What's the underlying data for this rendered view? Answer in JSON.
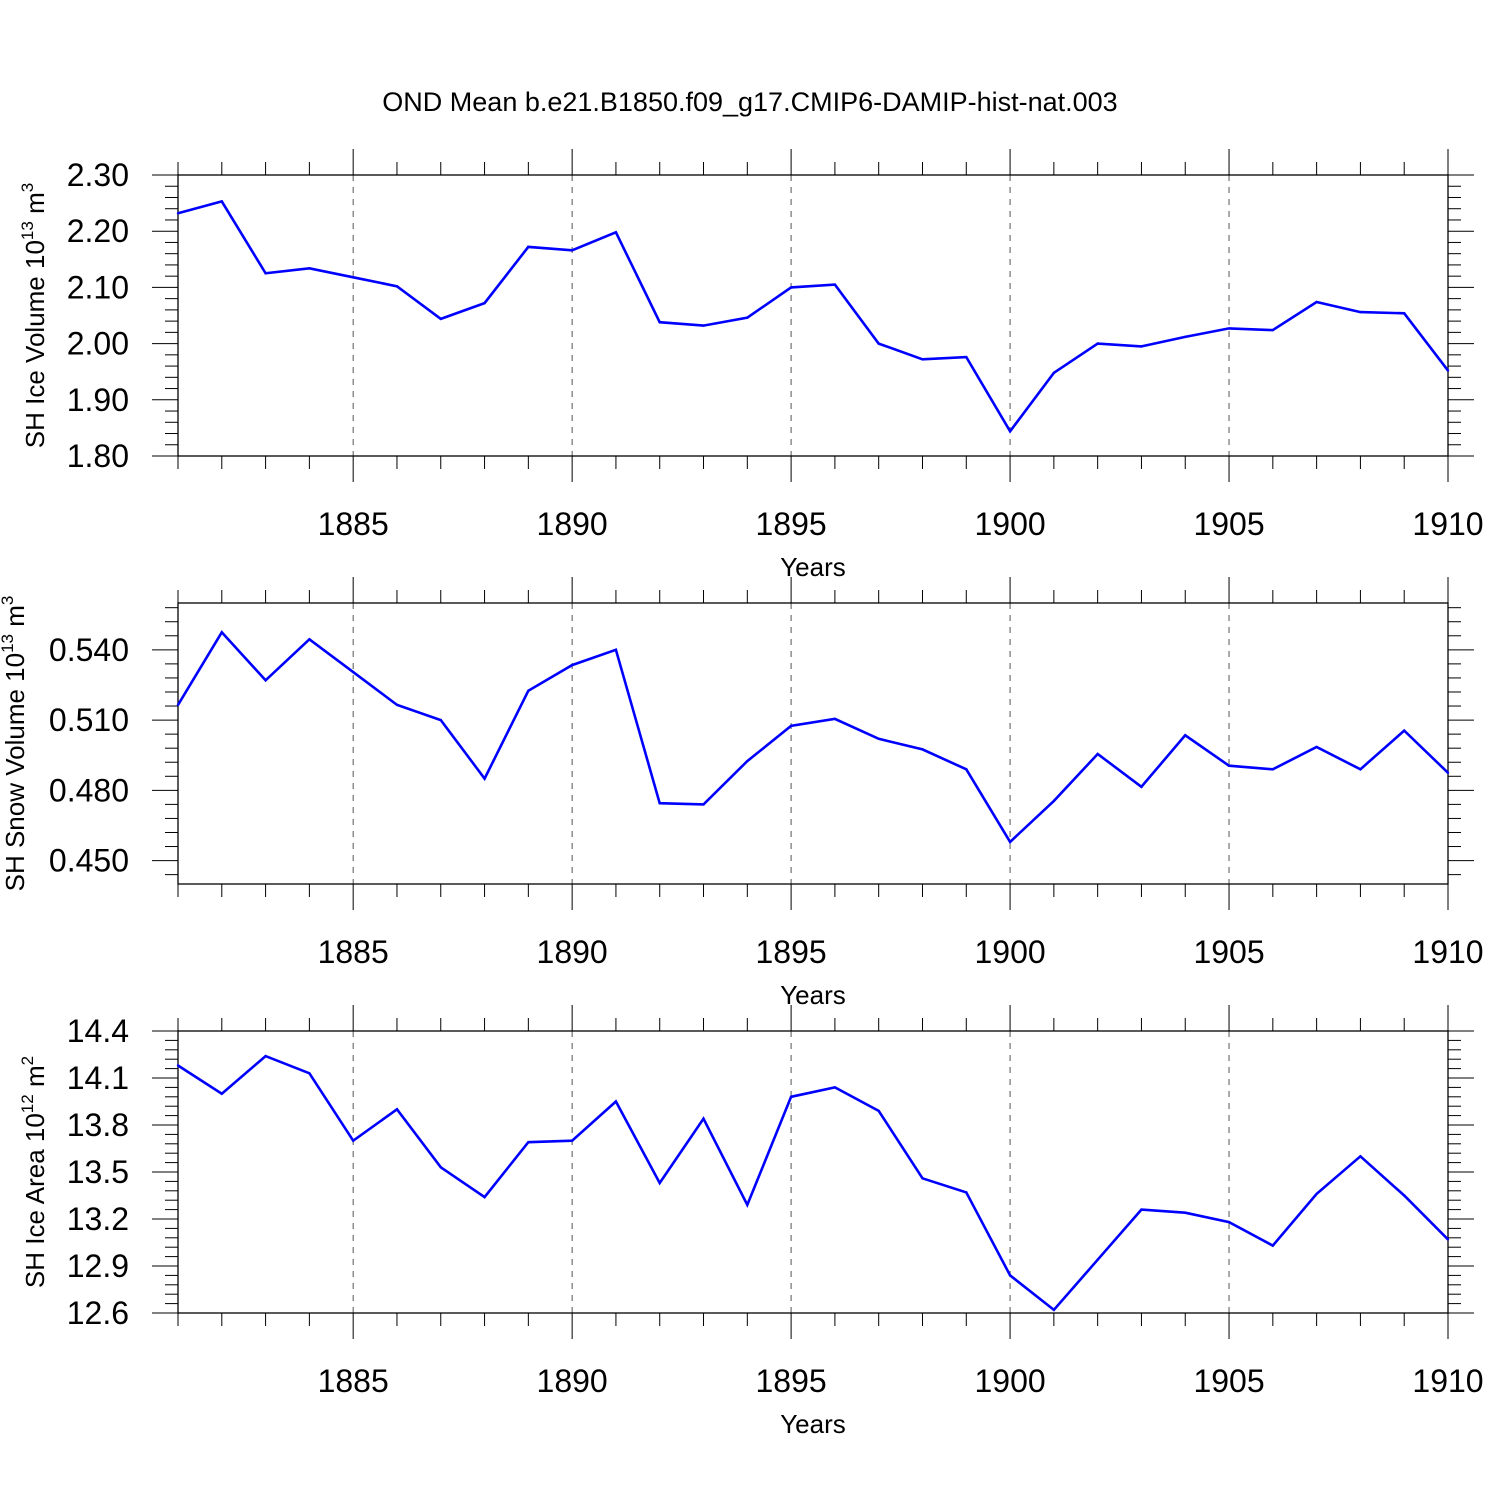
{
  "figure_title": "OND Mean b.e21.B1850.f09_g17.CMIP6-DAMIP-hist-nat.003",
  "colors": {
    "series": "#0000ff",
    "axes": "#000000",
    "grid": "#555555"
  },
  "chart_data": [
    {
      "type": "line",
      "xlabel": "Years",
      "ylabel": {
        "main": "SH Ice Volume 10",
        "exp": "13",
        "unit": " m",
        "unit_exp": "3"
      },
      "xlim": [
        1881,
        1910
      ],
      "ylim": [
        1.8,
        2.3
      ],
      "xticks": [
        1885,
        1890,
        1895,
        1900,
        1905,
        1910
      ],
      "yticks": [
        "1.80",
        "1.90",
        "2.00",
        "2.10",
        "2.20",
        "2.30"
      ],
      "grid": "vertical dashed at labeled years",
      "x": [
        1881,
        1882,
        1883,
        1884,
        1885,
        1886,
        1887,
        1888,
        1889,
        1890,
        1891,
        1892,
        1893,
        1894,
        1895,
        1896,
        1897,
        1898,
        1899,
        1900,
        1901,
        1902,
        1903,
        1904,
        1905,
        1906,
        1907,
        1908,
        1909,
        1910
      ],
      "y": [
        2.232,
        2.253,
        2.125,
        2.134,
        2.118,
        2.102,
        2.044,
        2.072,
        2.172,
        2.166,
        2.198,
        2.038,
        2.032,
        2.046,
        2.1,
        2.105,
        2.0,
        1.972,
        1.976,
        1.844,
        1.948,
        2.0,
        1.995,
        2.012,
        2.027,
        2.024,
        2.074,
        2.056,
        2.054,
        1.952
      ]
    },
    {
      "type": "line",
      "xlabel": "Years",
      "ylabel": {
        "main": "SH Snow Volume 10",
        "exp": "13",
        "unit": " m",
        "unit_exp": "3"
      },
      "xlim": [
        1881,
        1910
      ],
      "ylim": [
        0.44,
        0.56
      ],
      "xticks": [
        1885,
        1890,
        1895,
        1900,
        1905,
        1910
      ],
      "yticks": [
        "0.450",
        "0.480",
        "0.510",
        "0.540"
      ],
      "grid": "vertical dashed at labeled years",
      "x": [
        1881,
        1882,
        1883,
        1884,
        1885,
        1886,
        1887,
        1888,
        1889,
        1890,
        1891,
        1892,
        1893,
        1894,
        1895,
        1896,
        1897,
        1898,
        1899,
        1900,
        1901,
        1902,
        1903,
        1904,
        1905,
        1906,
        1907,
        1908,
        1909,
        1910
      ],
      "y": [
        0.5165,
        0.5475,
        0.527,
        0.5445,
        0.5305,
        0.5165,
        0.51,
        0.485,
        0.5225,
        0.5335,
        0.54,
        0.4745,
        0.474,
        0.4925,
        0.5075,
        0.5105,
        0.502,
        0.4975,
        0.489,
        0.458,
        0.4755,
        0.4955,
        0.4815,
        0.5035,
        0.4905,
        0.489,
        0.4985,
        0.489,
        0.5055,
        0.4875
      ]
    },
    {
      "type": "line",
      "xlabel": "Years",
      "ylabel": {
        "main": "SH Ice Area 10",
        "exp": "12",
        "unit": " m",
        "unit_exp": "2"
      },
      "xlim": [
        1881,
        1910
      ],
      "ylim": [
        12.6,
        14.4
      ],
      "xticks": [
        1885,
        1890,
        1895,
        1900,
        1905,
        1910
      ],
      "yticks": [
        "12.6",
        "12.9",
        "13.2",
        "13.5",
        "13.8",
        "14.1",
        "14.4"
      ],
      "grid": "vertical dashed at labeled years",
      "x": [
        1881,
        1882,
        1883,
        1884,
        1885,
        1886,
        1887,
        1888,
        1889,
        1890,
        1891,
        1892,
        1893,
        1894,
        1895,
        1896,
        1897,
        1898,
        1899,
        1900,
        1901,
        1902,
        1903,
        1904,
        1905,
        1906,
        1907,
        1908,
        1909,
        1910
      ],
      "y": [
        14.18,
        14.0,
        14.24,
        14.13,
        13.7,
        13.9,
        13.53,
        13.34,
        13.69,
        13.7,
        13.95,
        13.43,
        13.84,
        13.29,
        13.98,
        14.04,
        13.89,
        13.46,
        13.37,
        12.84,
        12.62,
        12.94,
        13.26,
        13.24,
        13.18,
        13.03,
        13.36,
        13.6,
        13.35,
        13.07
      ]
    }
  ]
}
